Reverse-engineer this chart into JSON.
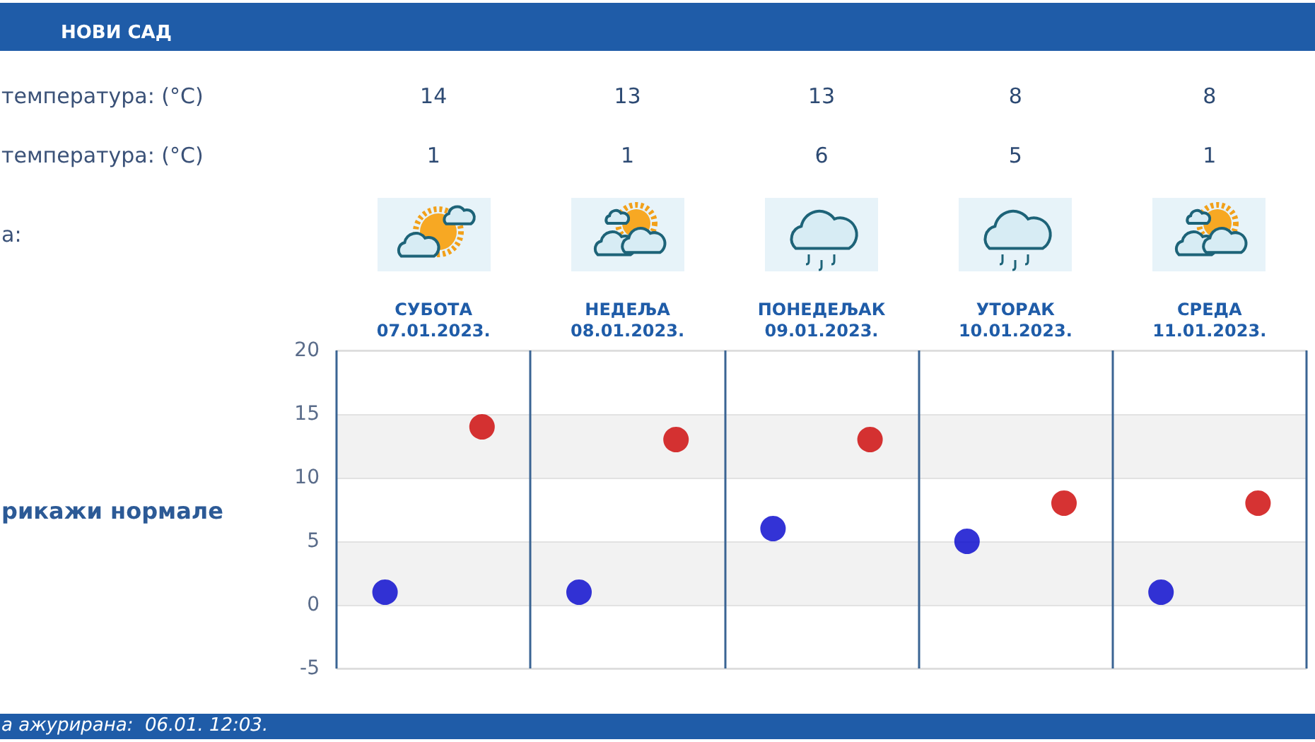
{
  "chart_data": {
    "type": "scatter",
    "title": "НОВИ САД",
    "categories": [
      "СУБОТА\n07.01.2023.",
      "НЕДЕЉА\n08.01.2023.",
      "ПОНЕДЕЉАК\n09.01.2023.",
      "УТОРАК\n10.01.2023.",
      "СРЕДА\n11.01.2023."
    ],
    "series": [
      {
        "color": "#cc0000",
        "values": [
          14,
          13,
          13,
          8,
          8
        ]
      },
      {
        "color": "#0000cc",
        "values": [
          1,
          1,
          6,
          5,
          1
        ]
      }
    ],
    "ylim": [
      -5,
      20
    ],
    "yticks": [
      -5,
      0,
      5,
      10,
      15,
      20
    ],
    "grid": true,
    "marker": "circle",
    "data_labels": true,
    "annotations": [
      "температура: (°C)",
      "температура: (°C)",
      "а:",
      "рикажи нормале",
      "а ажурирана:  06.01. 12:03."
    ]
  }
}
